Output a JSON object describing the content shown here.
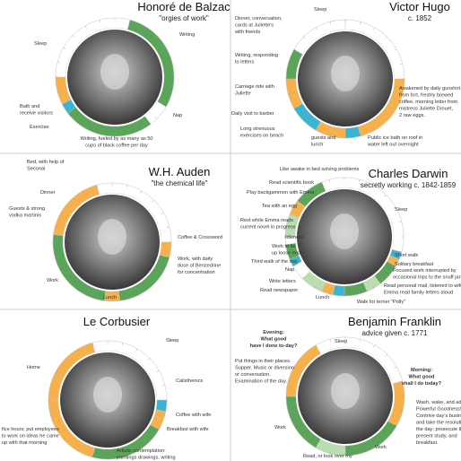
{
  "panels": [
    {
      "name": "Honoré de Balzac",
      "subtitle": "\"orgies of work\"",
      "segments": [
        {
          "start": 18,
          "end": 1,
          "color": "#ffffff"
        },
        {
          "start": 1,
          "end": 8,
          "color": "#5aa55a"
        },
        {
          "start": 8,
          "end": 9.5,
          "color": "#ffffff"
        },
        {
          "start": 9.5,
          "end": 15.5,
          "color": "#5aa55a"
        },
        {
          "start": 15.5,
          "end": 16.2,
          "color": "#39b4d1"
        },
        {
          "start": 16.2,
          "end": 18,
          "color": "#f6b14c"
        }
      ],
      "labels": [
        [
          "Sleep"
        ],
        [
          "Writing"
        ],
        [
          "Bath and",
          "receive visitors"
        ],
        [
          "Exercise"
        ],
        [
          "Nap"
        ],
        [
          "Writing, fueled by as many as 50",
          "cups of black coffee per day"
        ]
      ]
    },
    {
      "name": "Victor Hugo",
      "subtitle": "c. 1852",
      "segments": [
        {
          "start": 0,
          "end": 6,
          "color": "#ffffff"
        },
        {
          "start": 6,
          "end": 8,
          "color": "#f6b14c"
        },
        {
          "start": 8,
          "end": 11,
          "color": "#f6b14c"
        },
        {
          "start": 11,
          "end": 12,
          "color": "#39b4d1"
        },
        {
          "start": 12,
          "end": 14,
          "color": "#f6b14c"
        },
        {
          "start": 14,
          "end": 16,
          "color": "#39b4d1"
        },
        {
          "start": 16,
          "end": 18,
          "color": "#f6b14c"
        },
        {
          "start": 18,
          "end": 20,
          "color": "#5aa55a"
        },
        {
          "start": 20,
          "end": 24,
          "color": "#ffffff"
        }
      ],
      "labels": [
        [
          "Sleep"
        ],
        [
          "Dinner, conversation,",
          "cards at Juliette's",
          "with friends"
        ],
        [
          "Writing, responding",
          "to letters"
        ],
        [
          "Carriage ride with",
          "Juliette"
        ],
        [
          "Daily visit to barber"
        ],
        [
          "Long strenuous",
          "exercises on beach"
        ],
        [
          "guests and",
          "lunch"
        ],
        [
          "Awakened by daily gunshot",
          "from fort, freshly brewed",
          "coffee, morning letter from",
          "mistress Juliette Drouet,",
          "2 raw eggs."
        ],
        [
          "Public ice bath on roof in",
          "water left out overnight"
        ]
      ]
    },
    {
      "name": "W.H. Auden",
      "subtitle": "\"the chemical life\"",
      "segments": [
        {
          "start": 23,
          "end": 6,
          "color": "#ffffff"
        },
        {
          "start": 6,
          "end": 7,
          "color": "#f6b14c"
        },
        {
          "start": 7,
          "end": 11.5,
          "color": "#5aa55a"
        },
        {
          "start": 11.5,
          "end": 12.5,
          "color": "#f6b14c"
        },
        {
          "start": 12.5,
          "end": 18.5,
          "color": "#5aa55a"
        },
        {
          "start": 18.5,
          "end": 23,
          "color": "#f6b14c"
        }
      ],
      "labels": [
        [
          "Bed, with help of",
          "Seconal"
        ],
        [
          "Dinner"
        ],
        [
          "Guests & strong",
          "vodka martinis"
        ],
        [
          "Coffee & Crossword"
        ],
        [
          "Work, with daily",
          "dose of Benzedrine",
          "for concentration"
        ],
        [
          "Work"
        ],
        [
          "Lunch"
        ]
      ]
    },
    {
      "name": "Charles Darwin",
      "subtitle": "secretly working c. 1842-1859",
      "segments": [
        {
          "start": 22.5,
          "end": 7,
          "color": "#ffffff"
        },
        {
          "start": 7,
          "end": 7.5,
          "color": "#39b4d1"
        },
        {
          "start": 7.5,
          "end": 8,
          "color": "#f6b14c"
        },
        {
          "start": 8,
          "end": 9.5,
          "color": "#5aa55a"
        },
        {
          "start": 9.5,
          "end": 10.5,
          "color": "#b9dcb1"
        },
        {
          "start": 10.5,
          "end": 12,
          "color": "#5aa55a"
        },
        {
          "start": 12,
          "end": 12.75,
          "color": "#39b4d1"
        },
        {
          "start": 12.75,
          "end": 13.5,
          "color": "#f6b14c"
        },
        {
          "start": 13.5,
          "end": 15,
          "color": "#b9dcb1"
        },
        {
          "start": 15,
          "end": 16,
          "color": "#ffffff"
        },
        {
          "start": 16,
          "end": 16.5,
          "color": "#39b4d1"
        },
        {
          "start": 16.5,
          "end": 17.5,
          "color": "#5aa55a"
        },
        {
          "start": 17.5,
          "end": 18,
          "color": "#ffffff"
        },
        {
          "start": 18,
          "end": 19.5,
          "color": "#b9dcb1"
        },
        {
          "start": 19.5,
          "end": 20.5,
          "color": "#f6b14c"
        },
        {
          "start": 20.5,
          "end": 22.5,
          "color": "#5aa55a"
        }
      ],
      "labels": [
        [
          "Like awake in bed solving problems"
        ],
        [
          "Read scientific book"
        ],
        [
          "Play backgammon with Emma"
        ],
        [
          "Tea with an egg"
        ],
        [
          "Rest while Emma reads",
          "current novel in progress"
        ],
        [
          "Idleness"
        ],
        [
          "Work to tie",
          "up loose ends"
        ],
        [
          "Third walk of the day"
        ],
        [
          "Nap"
        ],
        [
          "Write letters"
        ],
        [
          "Read newspaper"
        ],
        [
          "Lunch"
        ],
        [
          "Walk for terrier \"Polly\""
        ],
        [
          "Sleep"
        ],
        [
          "Short walk"
        ],
        [
          "Solitary breakfast"
        ],
        [
          "Focused work interrupted by",
          "occasional trips to the snuff jar"
        ],
        [
          "Read personal mail, listened to wife",
          "Emma read family letters aloud"
        ]
      ]
    },
    {
      "name": "Le Corbusier",
      "subtitle": null,
      "segments": [
        {
          "start": 23,
          "end": 6,
          "color": "#ffffff"
        },
        {
          "start": 6,
          "end": 6.75,
          "color": "#39b4d1"
        },
        {
          "start": 6.75,
          "end": 7.25,
          "color": "#f6b14c"
        },
        {
          "start": 7.25,
          "end": 8,
          "color": "#f6b14c"
        },
        {
          "start": 8,
          "end": 13,
          "color": "#5aa55a"
        },
        {
          "start": 13,
          "end": 18,
          "color": "#f6b14c"
        },
        {
          "start": 18,
          "end": 23,
          "color": "#f6b14c"
        }
      ],
      "labels": [
        [
          "Sleep"
        ],
        [
          "Home"
        ],
        [
          "Calisthenics"
        ],
        [
          "Coffee with wife"
        ],
        [
          "Breakfast with wife"
        ],
        [
          "fice hours; put employees",
          "to work on ideas he came",
          "up with that morning"
        ],
        [
          "Artistic contemplation:",
          "paintings drawings, writing"
        ]
      ]
    },
    {
      "name": "Benjamin Franklin",
      "subtitle": "advice given c. 1771",
      "segments": [
        {
          "start": 22,
          "end": 5,
          "color": "#ffffff"
        },
        {
          "start": 5,
          "end": 8,
          "color": "#f6b14c"
        },
        {
          "start": 8,
          "end": 12,
          "color": "#5aa55a"
        },
        {
          "start": 12,
          "end": 14,
          "color": "#b9dcb1"
        },
        {
          "start": 14,
          "end": 18,
          "color": "#5aa55a"
        },
        {
          "start": 18,
          "end": 22,
          "color": "#f6b14c"
        }
      ],
      "labels": [
        [
          "Evening:",
          "What good",
          "have I done to-day?"
        ],
        [
          "Put things in their places.",
          "Supper. Music or diversion",
          "or conversation.",
          "Examination of the day."
        ],
        [
          "Morning:",
          "What good",
          "shall I do today?"
        ],
        [
          "Wash, wake, and address",
          "Powerful Goodness!",
          "Contrive day's business,",
          "and take the resolution of",
          "the day; prosecute the",
          "present study, and",
          "breakfast."
        ],
        [
          "Sleep"
        ],
        [
          "Work"
        ],
        [
          "Work"
        ],
        [
          "Read, or look over my"
        ]
      ]
    }
  ]
}
